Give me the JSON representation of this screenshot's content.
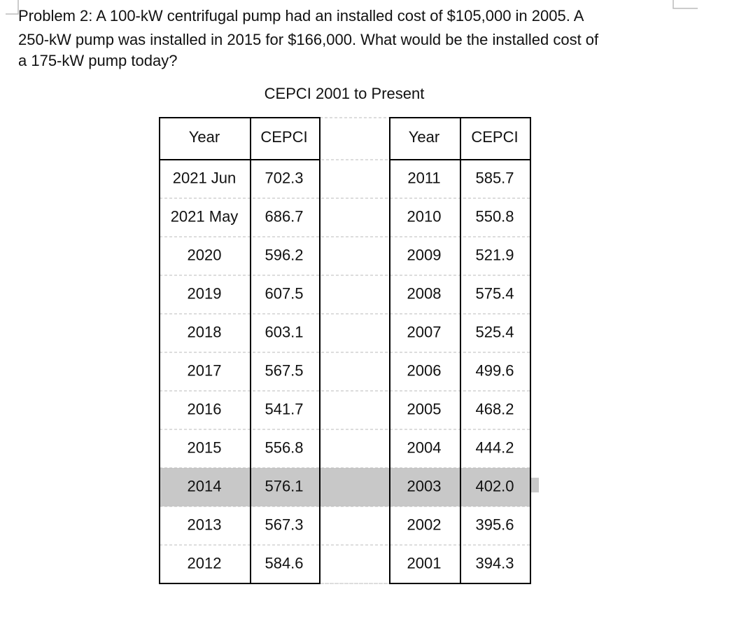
{
  "problem": {
    "lines": [
      "Problem 2: A 100-kW centrifugal pump had an installed cost of $105,000 in 2005. A",
      "250-kW pump was installed in 2015 for $166,000. What would be the installed cost of",
      "a 175-kW pump today?"
    ]
  },
  "table": {
    "title": "CEPCI 2001 to Present",
    "header": [
      "Year",
      "CEPCI",
      "Year",
      "CEPCI"
    ],
    "rows": [
      [
        "2021 Jun",
        "702.3",
        "2011",
        "585.7"
      ],
      [
        "2021 May",
        "686.7",
        "2010",
        "550.8"
      ],
      [
        "2020",
        "596.2",
        "2009",
        "521.9"
      ],
      [
        "2019",
        "607.5",
        "2008",
        "575.4"
      ],
      [
        "2018",
        "603.1",
        "2007",
        "525.4"
      ],
      [
        "2017",
        "567.5",
        "2006",
        "499.6"
      ],
      [
        "2016",
        "541.7",
        "2005",
        "468.2"
      ],
      [
        "2015",
        "556.8",
        "2004",
        "444.2"
      ],
      [
        "2014",
        "576.1",
        "2003",
        "402.0"
      ],
      [
        "2013",
        "567.3",
        "2002",
        "395.6"
      ],
      [
        "2012",
        "584.6",
        "2001",
        "394.3"
      ]
    ]
  }
}
